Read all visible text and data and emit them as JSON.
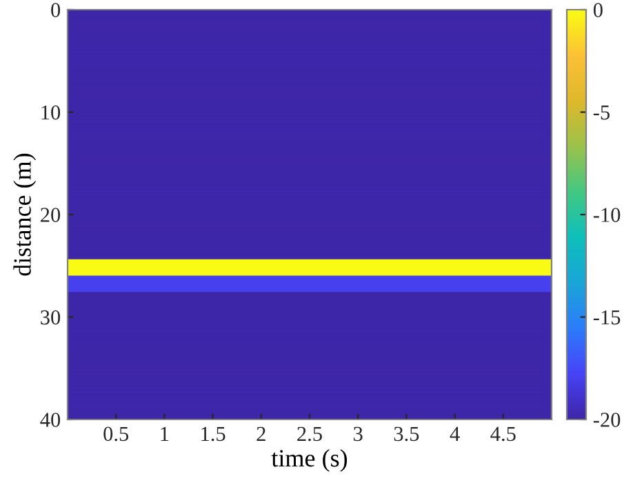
{
  "chart_data": {
    "type": "heatmap",
    "xlabel": "time (s)",
    "ylabel": "distance (m)",
    "cells": [
      [
        -20
      ],
      [
        -20
      ],
      [
        -20
      ],
      [
        -20
      ],
      [
        -20
      ],
      [
        -20
      ],
      [
        -20
      ],
      [
        -20
      ],
      [
        -20
      ],
      [
        -20
      ],
      [
        -20
      ],
      [
        -20
      ],
      [
        -20
      ],
      [
        -20
      ],
      [
        -20
      ],
      [
        -20
      ],
      [
        -20
      ],
      [
        -20
      ],
      [
        -20
      ],
      [
        -20
      ],
      [
        -20
      ],
      [
        -20
      ],
      [
        -20
      ],
      [
        -20
      ],
      [
        -20
      ],
      [
        -20
      ],
      [
        -20
      ],
      [
        -20
      ],
      [
        -20
      ],
      [
        -20
      ],
      [
        -20
      ],
      [
        -20
      ],
      [
        -20
      ],
      [
        -20
      ],
      [
        -20
      ],
      [
        -20
      ],
      [
        -20
      ],
      [
        -20
      ],
      [
        -20
      ],
      [
        -20
      ],
      [
        -20
      ],
      [
        -20
      ],
      [
        -20
      ],
      [
        -20
      ],
      [
        -20
      ],
      [
        -20
      ],
      [
        -20
      ],
      [
        -20
      ],
      [
        -20
      ],
      [
        -20
      ],
      [
        -20
      ],
      [
        -20
      ],
      [
        -20
      ],
      [
        -20
      ],
      [
        -20
      ],
      [
        -20
      ],
      [
        -20
      ],
      [
        -20
      ],
      [
        -20
      ],
      [
        -20
      ],
      [
        -20
      ],
      [
        0
      ],
      [
        0
      ],
      [
        0
      ],
      [
        0
      ],
      [
        -18
      ],
      [
        -18
      ],
      [
        -18
      ],
      [
        -18
      ],
      [
        -20
      ],
      [
        -20
      ],
      [
        -20
      ],
      [
        -20
      ],
      [
        -20
      ],
      [
        -20
      ],
      [
        -20
      ],
      [
        -20
      ],
      [
        -20
      ],
      [
        -20
      ],
      [
        -20
      ],
      [
        -20
      ],
      [
        -20
      ],
      [
        -20
      ],
      [
        -20
      ],
      [
        -20
      ],
      [
        -20
      ],
      [
        -20
      ],
      [
        -20
      ],
      [
        -20
      ],
      [
        -20
      ],
      [
        -20
      ],
      [
        -20
      ],
      [
        -20
      ],
      [
        -20
      ],
      [
        -20
      ],
      [
        -20
      ],
      [
        -20
      ],
      [
        -20
      ],
      [
        -20
      ],
      [
        -20
      ]
    ],
    "xlim": [
      0,
      5
    ],
    "xticks": [
      0.5,
      1,
      1.5,
      2,
      2.5,
      3,
      3.5,
      4,
      4.5
    ],
    "ylim": [
      40,
      0
    ],
    "yticks": [
      0,
      10,
      20,
      30,
      40
    ],
    "clim": [
      -20,
      0
    ],
    "cticks": [
      -20,
      -15,
      -10,
      -5,
      0
    ]
  }
}
